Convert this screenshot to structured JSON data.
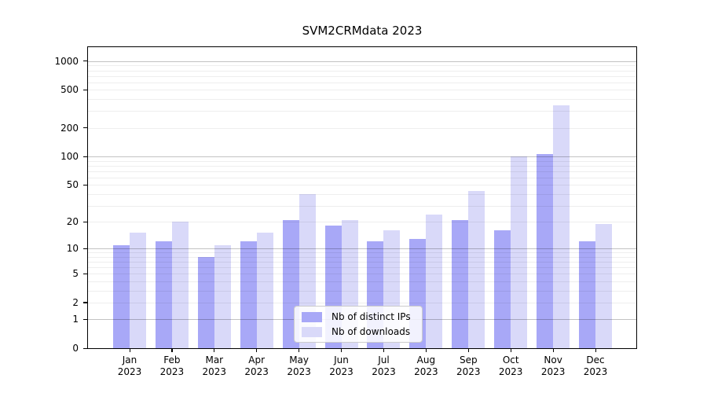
{
  "title": "SVM2CRMdata 2023",
  "chart_data": {
    "type": "bar",
    "title": "SVM2CRMdata 2023",
    "x_categories": [
      "Jan",
      "Feb",
      "Mar",
      "Apr",
      "May",
      "Jun",
      "Jul",
      "Aug",
      "Sep",
      "Oct",
      "Nov",
      "Dec"
    ],
    "x_year": "2023",
    "series": [
      {
        "name": "Nb of distinct IPs",
        "color": "#a8a8f7",
        "values": [
          11,
          12,
          8,
          12,
          21,
          18,
          12,
          13,
          21,
          16,
          105,
          12
        ]
      },
      {
        "name": "Nb of downloads",
        "color": "#d9d9f9",
        "values": [
          15,
          20,
          11,
          15,
          40,
          21,
          16,
          24,
          43,
          100,
          347,
          19
        ]
      }
    ],
    "yscale": "symlog (log1p)",
    "yticks": [
      0,
      1,
      2,
      5,
      10,
      20,
      50,
      100,
      200,
      500,
      1000
    ],
    "ylim": [
      0,
      1400
    ],
    "grid": "horizontal, minor and major log lines",
    "legend_position": "lower center"
  }
}
